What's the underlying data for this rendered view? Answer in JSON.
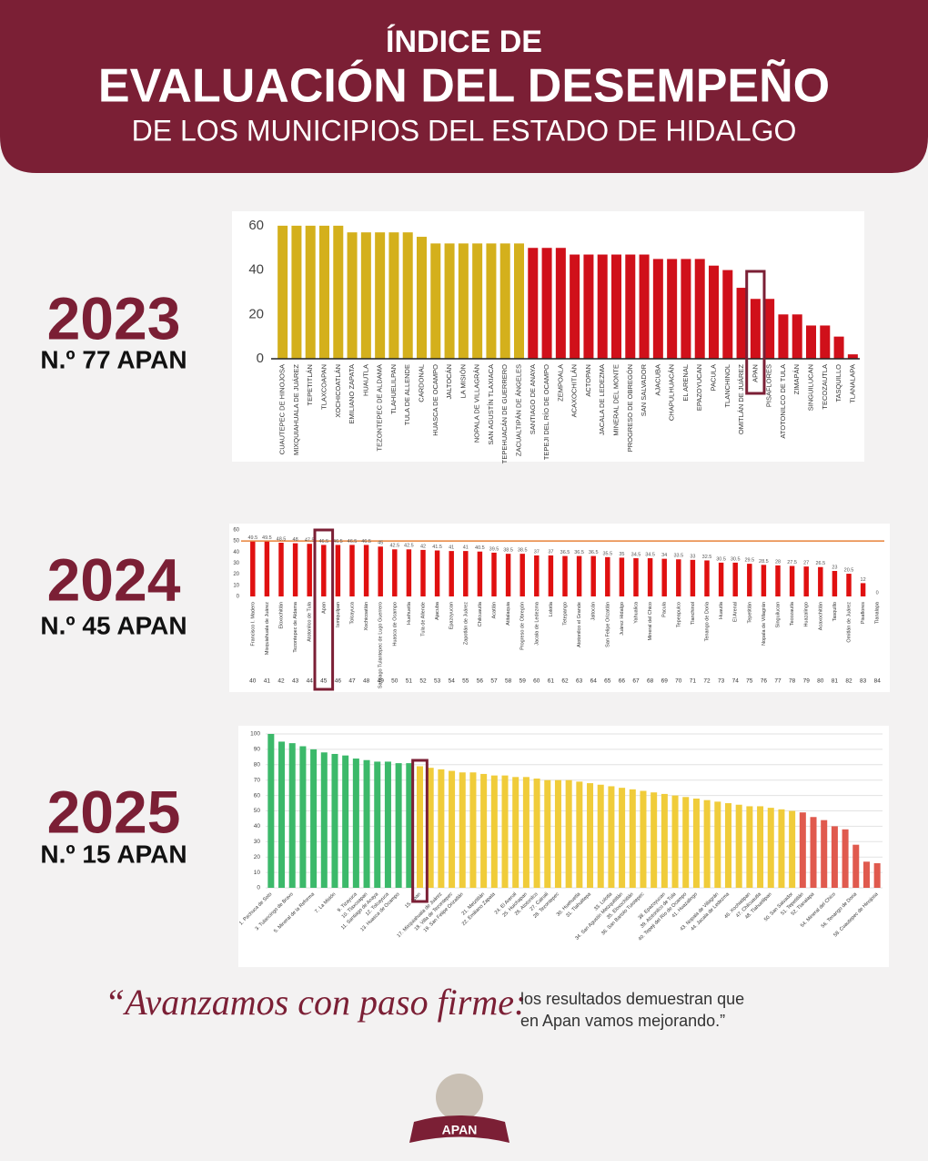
{
  "header": {
    "line1": "ÍNDICE DE",
    "line2": "EVALUACIÓN DEL DESEMPEÑO",
    "line3": "DE LOS MUNICIPIOS DEL ESTADO DE HIDALGO"
  },
  "quote": {
    "script": "“Avanzamos con paso firme:",
    "line1": "los resultados demuestran que",
    "line2": "en Apan vamos mejorando.”"
  },
  "logo": {
    "name": "APAN"
  },
  "chart_data": [
    {
      "type": "bar",
      "year": "2023",
      "rank": "N.º 77 APAN",
      "categories": [
        "CUAUTEPEC DE HINOJOSA",
        "MIXQUIAHUALA DE JUÁREZ",
        "TEPETITLÁN",
        "TLAXCOAPAN",
        "XOCHICOATLÁN",
        "EMILIANO ZAPATA",
        "HUAUTLA",
        "TEZONTEPEC DE ALDAMA",
        "TLAHUELILPAN",
        "TULA DE ALLENDE",
        "CARDONAL",
        "HUASCA DE OCAMPO",
        "JALTOCÁN",
        "LA MISIÓN",
        "NOPALA DE VILLAGRÁN",
        "SAN AGUSTÍN TLAXIACA",
        "TEPEHUACÁN DE GUERRERO",
        "ZACUALTIPÁN DE ÁNGELES",
        "SANTIAGO DE ANAYA",
        "TEPEJI DEL RÍO DE OCAMPO",
        "ZEMPOALA",
        "ACAXOCHITLÁN",
        "ACTOPAN",
        "JACALA DE LEDEZMA",
        "MINERAL DEL MONTE",
        "PROGRESO DE OBREGÓN",
        "SAN SALVADOR",
        "AJACUBA",
        "CHAPULHUACÁN",
        "EL ARENAL",
        "EPAZOYUCAN",
        "PACULA",
        "TLANCHINOL",
        "OMITLÁN DE JUÁREZ",
        "APAN",
        "PISAFLORES",
        "ATOTONILCO DE TULA",
        "ZIMAPÁN",
        "SINGUILUCAN",
        "TECOZAUTLA",
        "TASQUILLO",
        "TLANALAPA"
      ],
      "values": [
        60,
        60,
        60,
        60,
        60,
        57,
        57,
        57,
        57,
        57,
        55,
        52,
        52,
        52,
        52,
        52,
        52,
        52,
        50,
        50,
        50,
        47,
        47,
        47,
        47,
        47,
        47,
        45,
        45,
        45,
        45,
        42,
        40,
        32,
        27,
        27,
        20,
        20,
        15,
        15,
        10,
        2
      ],
      "colors": [
        "#d4b01c",
        "#d4b01c",
        "#d4b01c",
        "#d4b01c",
        "#d4b01c",
        "#d4b01c",
        "#d4b01c",
        "#d4b01c",
        "#d4b01c",
        "#d4b01c",
        "#d4b01c",
        "#d4b01c",
        "#d4b01c",
        "#d4b01c",
        "#d4b01c",
        "#d4b01c",
        "#d4b01c",
        "#d4b01c",
        "#d0101a",
        "#d0101a",
        "#d0101a",
        "#d0101a",
        "#d0101a",
        "#d0101a",
        "#d0101a",
        "#d0101a",
        "#d0101a",
        "#d0101a",
        "#d0101a",
        "#d0101a",
        "#d0101a",
        "#d0101a",
        "#d0101a",
        "#d0101a",
        "#d0101a",
        "#d0101a",
        "#d0101a",
        "#d0101a",
        "#d0101a",
        "#d0101a",
        "#d0101a",
        "#d0101a"
      ],
      "ylim": [
        0,
        62
      ],
      "yticks": [
        0,
        20,
        40,
        60
      ],
      "grid": false,
      "highlight": 34
    },
    {
      "type": "bar",
      "year": "2024",
      "rank": "N.º 45 APAN",
      "categories": [
        "Francisco I. Madero",
        "Mixquiahuala de Juárez",
        "Eloxochitlán",
        "Tezontepec de Aldama",
        "Atotonilco de Tula",
        "Apan",
        "Ixmiquilpan",
        "Tolcayuca",
        "Xochicoatlán",
        "Santiago Tulantepec de Lugo Guerrero",
        "Huasca de Ocampo",
        "Huehuetla",
        "Tula de Allende",
        "Ajacuba",
        "Epazoyucan",
        "Zapotlán de Juárez",
        "Chilcuautla",
        "Acatlán",
        "Atitalaquia",
        "Progreso de Obregón",
        "Jacala de Ledezma",
        "Lolotla",
        "Tetepango",
        "Atotonilco el Grande",
        "Jaltocán",
        "San Felipe Orizatlán",
        "Juárez Hidalgo",
        "Yahualica",
        "Mineral del Chico",
        "Pacula",
        "Tepeapulco",
        "Tlanchinol",
        "Tenango de Doria",
        "Huautla",
        "El Arenal",
        "Tepetitlán",
        "Nopala de Villagrán",
        "Singuilucan",
        "Tecozautla",
        "Huazalingo",
        "Acaxochitlán",
        "Tasquillo",
        "Omitlán de Juárez",
        "Pisaflores",
        "Tlanalapa"
      ],
      "values": [
        49.5,
        49.5,
        48.5,
        48,
        47.5,
        46.5,
        46.5,
        46.5,
        46.5,
        45,
        42.5,
        42.5,
        42,
        41.5,
        41,
        41,
        40.5,
        39.5,
        38.5,
        38.5,
        37,
        37,
        36.5,
        36.5,
        36.5,
        35.5,
        35,
        34.5,
        34.5,
        34,
        33.5,
        33,
        32.5,
        30.5,
        30.5,
        29.5,
        28.5,
        28,
        27.5,
        27,
        26.5,
        23,
        20.5,
        12,
        0
      ],
      "ranks": [
        40,
        41,
        42,
        43,
        44,
        45,
        46,
        47,
        48,
        49,
        50,
        51,
        52,
        53,
        54,
        55,
        56,
        57,
        58,
        59,
        60,
        61,
        62,
        63,
        64,
        65,
        66,
        67,
        68,
        69,
        70,
        71,
        72,
        73,
        74,
        75,
        76,
        77,
        78,
        79,
        80,
        81,
        82,
        83,
        84
      ],
      "color": "#e01010",
      "reference_line": 50,
      "reference_color": "#e8833a",
      "ylim": [
        0,
        60
      ],
      "yticks": [
        0,
        10,
        20,
        30,
        40,
        50,
        60
      ],
      "grid": false,
      "highlight": 5
    },
    {
      "type": "bar",
      "year": "2025",
      "rank": "N.º 15 APAN",
      "categories": [
        "1. Pachuca de Soto",
        null,
        "3. Tulancingo de Bravo",
        null,
        "5. Mineral de la Reforma",
        null,
        "7. La Misión",
        null,
        "9. Tizayuca",
        "10. Tlaxcoapan",
        "11. Santiago de Anaya",
        "12. Tolcayuca",
        "13. Huasca de Ocampo",
        null,
        "15. Apan",
        null,
        "17. Mixquiahuala de Juárez",
        "18. Villa de Tezontepec",
        "19. San Felipe Orizatlán",
        null,
        "21. Metztitlán",
        "22. Emiliano Zapata",
        null,
        "24. El Arenal",
        "25. Huichapan",
        "26. Atotonilco",
        "27. Calnali",
        "28. Tezontepec",
        null,
        "30. Huehuetla",
        "31. Tlahuiltepa",
        null,
        "33. Lolotla",
        "34. San Agustín Metzquititlán",
        "35. Eloxochitlán",
        "36. San Bartolo Tutotepec",
        null,
        "38. Epazoyucan",
        "39. Atotonilco de Tula",
        "40. Tepeji del Río de Ocampo",
        "41. Huazalingo",
        null,
        "43. Nopala de Villagrán",
        "44. Jacala de Ledezma",
        null,
        "46. Xochiatipan",
        "47. Chilcuautla",
        "48. Tlahuelilpan",
        null,
        "50. San Salvador",
        "51. Tepetitlán",
        "52. Tlanalapa",
        null,
        "54. Mineral del Chico",
        null,
        "56. Tenango de Doria",
        null,
        "58. Cuautepec de Hinojosa"
      ],
      "values": [
        100,
        95,
        94,
        92,
        90,
        88,
        87,
        86,
        84,
        83,
        82,
        82,
        81,
        81,
        79,
        78,
        77,
        76,
        75,
        75,
        74,
        73,
        73,
        72,
        72,
        71,
        70,
        70,
        70,
        69,
        68,
        67,
        66,
        65,
        64,
        63,
        62,
        61,
        60,
        59,
        58,
        57,
        56,
        55,
        54,
        53,
        53,
        52,
        51,
        50,
        49,
        46,
        44,
        40,
        38,
        28,
        17,
        16
      ],
      "colors": [
        "#3cb96a",
        "#3cb96a",
        "#3cb96a",
        "#3cb96a",
        "#3cb96a",
        "#3cb96a",
        "#3cb96a",
        "#3cb96a",
        "#3cb96a",
        "#3cb96a",
        "#3cb96a",
        "#3cb96a",
        "#3cb96a",
        "#3cb96a",
        "#f0cc3a",
        "#f0cc3a",
        "#f0cc3a",
        "#f0cc3a",
        "#f0cc3a",
        "#f0cc3a",
        "#f0cc3a",
        "#f0cc3a",
        "#f0cc3a",
        "#f0cc3a",
        "#f0cc3a",
        "#f0cc3a",
        "#f0cc3a",
        "#f0cc3a",
        "#f0cc3a",
        "#f0cc3a",
        "#f0cc3a",
        "#f0cc3a",
        "#f0cc3a",
        "#f0cc3a",
        "#f0cc3a",
        "#f0cc3a",
        "#f0cc3a",
        "#f0cc3a",
        "#f0cc3a",
        "#f0cc3a",
        "#f0cc3a",
        "#f0cc3a",
        "#f0cc3a",
        "#f0cc3a",
        "#f0cc3a",
        "#f0cc3a",
        "#f0cc3a",
        "#f0cc3a",
        "#f0cc3a",
        "#f0cc3a",
        "#e05a4e",
        "#e05a4e",
        "#e05a4e",
        "#e05a4e",
        "#e05a4e",
        "#e05a4e",
        "#e05a4e",
        "#e05a4e"
      ],
      "ylim": [
        0,
        100
      ],
      "yticks": [
        0,
        10,
        20,
        30,
        40,
        50,
        60,
        70,
        80,
        90,
        100
      ],
      "grid": true,
      "highlight": 14
    }
  ]
}
